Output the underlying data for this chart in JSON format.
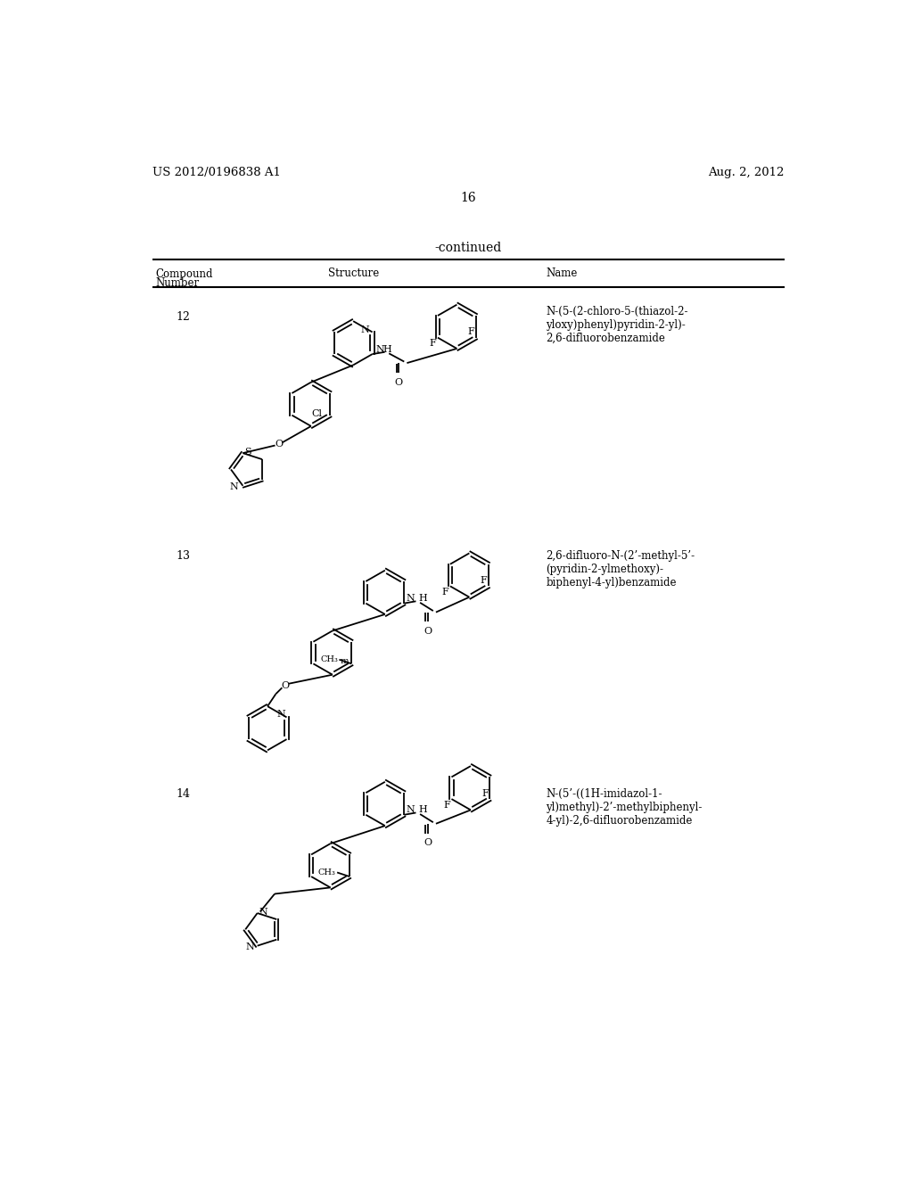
{
  "header_left": "US 2012/0196838 A1",
  "header_right": "Aug. 2, 2012",
  "page_number": "16",
  "continued_text": "-continued",
  "compounds": [
    {
      "number": "12",
      "name": "N-(5-(2-chloro-5-(thiazol-2-\nyloxy)phenyl)pyridin-2-yl)-\n2,6-difluorobenzamide"
    },
    {
      "number": "13",
      "name": "2,6-difluoro-N-(2’-methyl-5’-\n(pyridin-2-ylmethoxy)-\nbiphenyl-4-yl)benzamide"
    },
    {
      "number": "14",
      "name": "N-(5’-((1H-imidazol-1-\nyl)methyl)-2’-methylbiphenyl-\n4-yl)-2,6-difluorobenzamide"
    }
  ],
  "bg_color": "#ffffff",
  "text_color": "#000000"
}
